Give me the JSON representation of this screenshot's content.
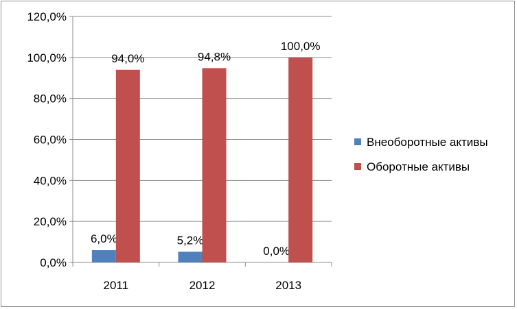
{
  "chart_data": {
    "type": "bar",
    "categories": [
      "2011",
      "2012",
      "2013"
    ],
    "series": [
      {
        "name": "Внеоборотные активы",
        "values": [
          6.0,
          5.2,
          0.0
        ],
        "color": "#4f81bd",
        "labels": [
          "6,0%",
          "5,2%",
          "0,0%"
        ]
      },
      {
        "name": "Оборотные активы",
        "values": [
          94.0,
          94.8,
          100.0
        ],
        "color": "#c0504d",
        "labels": [
          "94,0%",
          "94,8%",
          "100,0%"
        ]
      }
    ],
    "ylim": [
      0,
      120
    ],
    "yticks": [
      0,
      20,
      40,
      60,
      80,
      100,
      120
    ],
    "ytick_labels": [
      "0,0%",
      "20,0%",
      "40,0%",
      "60,0%",
      "80,0%",
      "100,0%",
      "120,0%"
    ],
    "grid": true,
    "legend": "right",
    "title": "",
    "xlabel": "",
    "ylabel": ""
  }
}
